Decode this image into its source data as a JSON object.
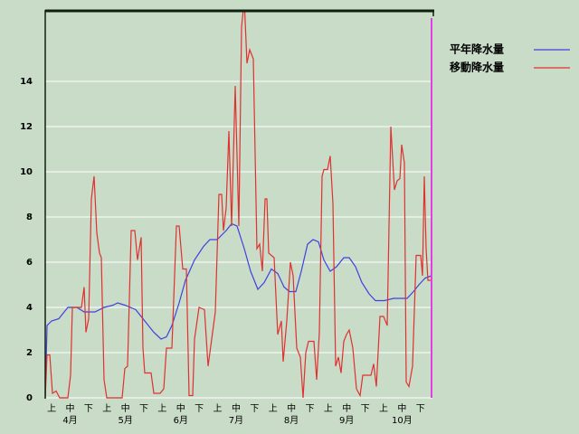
{
  "chart_data": {
    "type": "line",
    "x_labels": [
      "上",
      "中",
      "下",
      "上",
      "中",
      "下",
      "上",
      "中",
      "下",
      "上",
      "中",
      "下",
      "上",
      "中",
      "下",
      "上",
      "中",
      "下",
      "上",
      "中",
      "下"
    ],
    "months": [
      "4月",
      "5月",
      "6月",
      "7月",
      "8月",
      "9月",
      "10月"
    ],
    "xlim": [
      0,
      214
    ],
    "ylim": [
      0,
      17.12
    ],
    "yticks": [
      0,
      2,
      4,
      6,
      8,
      10,
      12,
      14
    ],
    "grid": true,
    "legend": "top-right",
    "series": [
      {
        "name": "平年降水量",
        "color": "#4040e0",
        "x": [
          0,
          1,
          3.5,
          7.5,
          12.5,
          17.5,
          21.5,
          27.5,
          32.5,
          37.5,
          40,
          44,
          50,
          55,
          60,
          64,
          67,
          70,
          74,
          77.5,
          82.5,
          87.5,
          91,
          95,
          100,
          103,
          106,
          110,
          113.5,
          117.5,
          121,
          125,
          128.5,
          132,
          135,
          138.5,
          141.5,
          145,
          148,
          151,
          154,
          157.5,
          161,
          165,
          168,
          171.5,
          175,
          179,
          182.5,
          187.5,
          192.5,
          200,
          203.5,
          206.5,
          210,
          213.5
        ],
        "values": [
          0,
          3.2,
          3.4,
          3.5,
          4.0,
          4.0,
          3.8,
          3.8,
          4.0,
          4.1,
          4.2,
          4.1,
          3.9,
          3.4,
          2.9,
          2.6,
          2.7,
          3.2,
          4.2,
          5.2,
          6.1,
          6.7,
          7.0,
          7.0,
          7.4,
          7.7,
          7.6,
          6.6,
          5.6,
          4.8,
          5.1,
          5.7,
          5.5,
          4.9,
          4.7,
          4.7,
          5.6,
          6.8,
          7.0,
          6.9,
          6.1,
          5.6,
          5.8,
          6.2,
          6.2,
          5.8,
          5.1,
          4.6,
          4.3,
          4.3,
          4.4,
          4.4,
          4.7,
          5.0,
          5.3,
          5.4
        ]
      },
      {
        "name": "移動降水量",
        "color": "#e03030",
        "x": [
          0,
          1,
          2.5,
          4,
          6,
          8,
          12.5,
          14,
          15,
          20,
          21.5,
          22.5,
          24,
          25.5,
          27,
          28.5,
          30,
          31,
          32.5,
          34,
          42.5,
          44,
          45.5,
          47.5,
          49.5,
          51,
          53,
          54,
          55,
          58.5,
          60,
          63.5,
          65.5,
          67,
          70,
          72.5,
          74,
          76,
          78,
          79.5,
          81.5,
          82.5,
          85,
          88,
          90,
          92,
          94,
          96,
          97.5,
          98.5,
          100,
          101.5,
          103,
          105,
          107,
          108.5,
          110,
          111.5,
          113,
          115,
          117,
          118.5,
          120,
          121.5,
          122.5,
          123.5,
          126.5,
          128.5,
          130.5,
          131.5,
          133.5,
          135.5,
          137,
          139,
          141,
          142.5,
          144,
          145.5,
          148.5,
          150,
          151.5,
          153,
          154,
          156,
          157.5,
          159,
          160.5,
          162,
          163.5,
          165,
          166.5,
          168,
          170,
          172,
          174,
          175.5,
          180,
          181.5,
          183,
          185,
          187,
          189,
          191,
          193,
          194.5,
          196,
          197,
          198.5,
          199.5,
          201,
          203,
          205,
          207.5,
          208.5,
          209.5,
          210.5,
          211.5,
          213.5
        ],
        "values": [
          0,
          1.9,
          1.9,
          0.2,
          0.3,
          0,
          0,
          1.0,
          4.0,
          4.0,
          4.9,
          2.9,
          3.5,
          8.8,
          9.8,
          7.3,
          6.4,
          6.2,
          0.8,
          0,
          0,
          1.3,
          1.4,
          7.4,
          7.4,
          6.1,
          7.1,
          2.2,
          1.1,
          1.1,
          0.2,
          0.2,
          0.4,
          2.2,
          2.2,
          7.6,
          7.6,
          5.7,
          5.7,
          0.1,
          0.1,
          2.6,
          4.0,
          3.9,
          1.4,
          2.6,
          3.8,
          9.0,
          9.0,
          7.4,
          8.4,
          11.8,
          7.6,
          13.8,
          7.6,
          16.4,
          17.6,
          14.8,
          15.4,
          15.0,
          6.6,
          6.8,
          5.6,
          8.8,
          8.8,
          6.4,
          6.2,
          2.8,
          3.4,
          1.6,
          3.4,
          6.0,
          5.4,
          2.2,
          1.8,
          0,
          2.0,
          2.5,
          2.5,
          0.8,
          2.9,
          9.8,
          10.1,
          10.1,
          10.7,
          8.6,
          1.4,
          1.8,
          1.1,
          2.5,
          2.8,
          3.0,
          2.2,
          0.4,
          0.1,
          1.0,
          1.0,
          1.5,
          0.5,
          3.6,
          3.6,
          3.2,
          12.0,
          9.2,
          9.6,
          9.7,
          11.2,
          10.4,
          0.7,
          0.5,
          1.4,
          6.3,
          6.3,
          5.4,
          9.8,
          6.6,
          5.2,
          5.2
        ]
      }
    ]
  }
}
